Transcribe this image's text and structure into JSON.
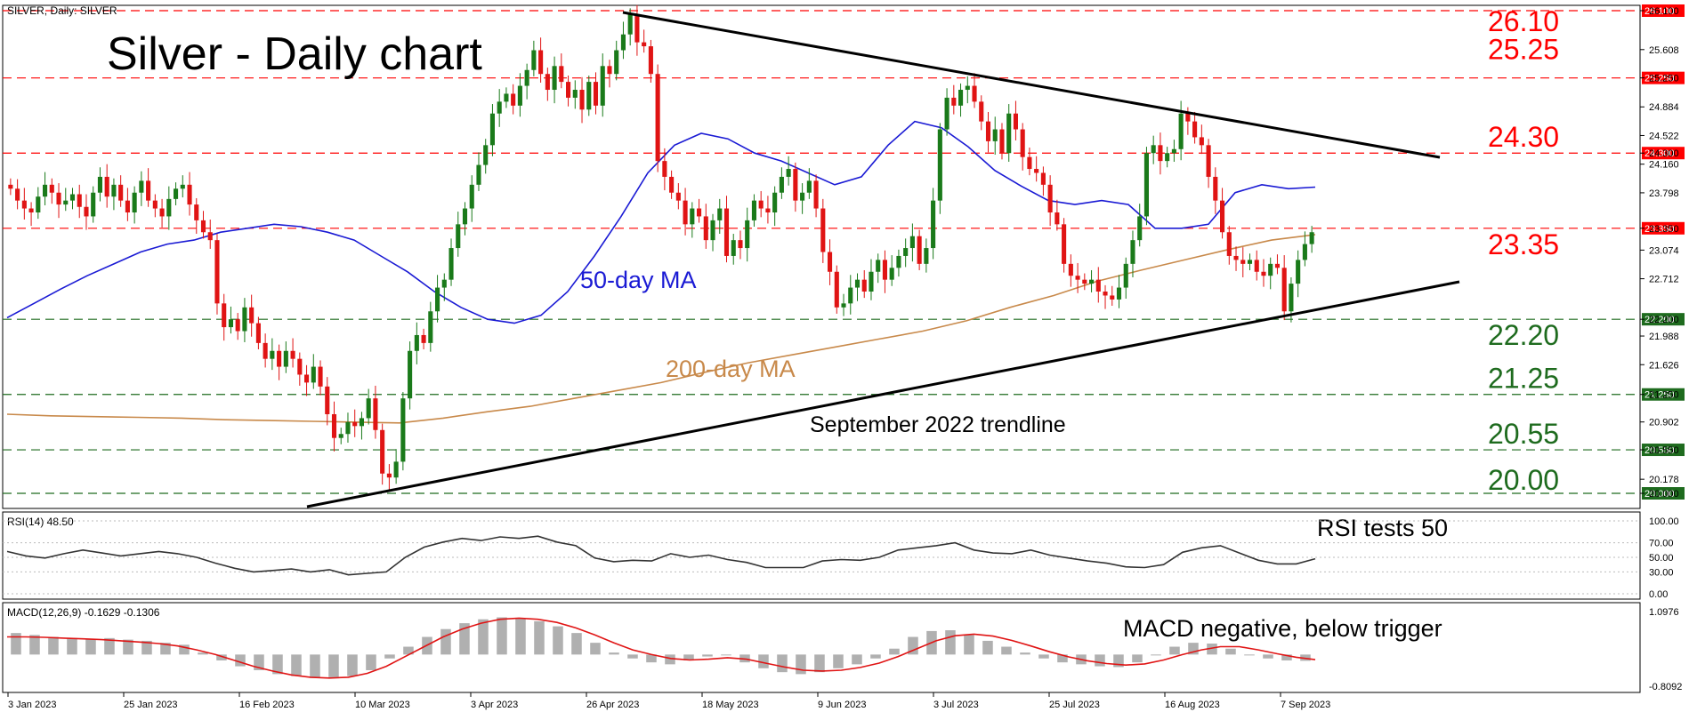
{
  "chart_data": {
    "type": "candlestick",
    "symbol_label": "SILVER, Daily:  SILVER",
    "title": "Silver - Daily chart",
    "price_axis": {
      "ticks": [
        "26.100",
        "25.608",
        "25.250",
        "24.884",
        "24.522",
        "24.300",
        "24.160",
        "23.798",
        "23.350",
        "23.074",
        "22.712",
        "22.200",
        "21.988",
        "21.626",
        "21.250",
        "20.902",
        "20.550",
        "20.178",
        "20.000"
      ],
      "ylim": [
        19.95,
        26.25
      ]
    },
    "x_labels": [
      "3 Jan 2023",
      "25 Jan 2023",
      "16 Feb 2023",
      "10 Mar 2023",
      "3 Apr 2023",
      "26 Apr 2023",
      "18 May 2023",
      "9 Jun 2023",
      "3 Jul 2023",
      "25 Jul 2023",
      "16 Aug 2023",
      "7 Sep 2023"
    ],
    "levels": [
      {
        "value": 26.1,
        "label": "26.10",
        "tag": "26.100",
        "color": "#ff0000"
      },
      {
        "value": 25.25,
        "label": "25.25",
        "tag": "25.250",
        "color": "#ff0000"
      },
      {
        "value": 24.3,
        "label": "24.30",
        "tag": "24.300",
        "color": "#ff0000"
      },
      {
        "value": 23.35,
        "label": "23.35",
        "tag": "23.350",
        "color": "#ff0000"
      },
      {
        "value": 22.2,
        "label": "22.20",
        "tag": "22.200",
        "color": "#1e6b1e"
      },
      {
        "value": 21.25,
        "label": "21.25",
        "tag": "21.250",
        "color": "#1e6b1e"
      },
      {
        "value": 20.55,
        "label": "20.55",
        "tag": "20.550",
        "color": "#1e6b1e"
      },
      {
        "value": 20.0,
        "label": "20.00",
        "tag": "20.000",
        "color": "#1e6b1e"
      }
    ],
    "annotations": {
      "ma50": "50-day MA",
      "ma200": "200-day MA",
      "trendline": "September 2022 trendline",
      "rsi_note": "RSI tests 50",
      "macd_note": "MACD negative, below trigger"
    },
    "close_series": [
      23.85,
      23.7,
      23.6,
      23.55,
      23.75,
      23.9,
      23.8,
      23.65,
      23.7,
      23.78,
      23.62,
      23.5,
      23.8,
      24.0,
      23.75,
      23.9,
      23.7,
      23.55,
      23.8,
      23.95,
      23.7,
      23.6,
      23.5,
      23.72,
      23.85,
      23.9,
      23.65,
      23.45,
      23.3,
      23.2,
      22.4,
      22.1,
      22.2,
      22.05,
      22.35,
      22.15,
      21.9,
      21.7,
      21.8,
      21.6,
      21.8,
      21.7,
      21.5,
      21.4,
      21.6,
      21.35,
      21.0,
      20.7,
      20.75,
      20.9,
      20.85,
      20.95,
      21.2,
      20.8,
      20.25,
      20.2,
      20.4,
      21.2,
      21.8,
      22.0,
      21.9,
      22.3,
      22.6,
      22.7,
      23.1,
      23.4,
      23.6,
      23.9,
      24.15,
      24.4,
      24.8,
      24.95,
      25.05,
      24.9,
      25.15,
      25.35,
      25.6,
      25.3,
      25.1,
      25.4,
      25.2,
      25.0,
      25.1,
      24.85,
      25.2,
      24.9,
      25.4,
      25.3,
      25.6,
      25.8,
      26.05,
      25.7,
      25.65,
      25.3,
      24.2,
      24.0,
      23.8,
      23.7,
      23.4,
      23.6,
      23.5,
      23.2,
      23.45,
      23.6,
      23.0,
      23.2,
      23.1,
      23.45,
      23.7,
      23.6,
      23.55,
      23.8,
      24.0,
      24.1,
      23.7,
      23.8,
      23.95,
      23.6,
      23.05,
      22.8,
      22.35,
      22.4,
      22.6,
      22.7,
      22.55,
      22.8,
      22.95,
      22.7,
      22.85,
      23.0,
      23.1,
      23.25,
      22.9,
      23.1,
      23.7,
      24.6,
      25.0,
      24.9,
      25.1,
      25.15,
      24.95,
      24.7,
      24.45,
      24.6,
      24.3,
      24.8,
      24.6,
      24.25,
      24.1,
      24.05,
      23.9,
      23.55,
      23.4,
      22.9,
      22.75,
      22.7,
      22.65,
      22.7,
      22.55,
      22.5,
      22.45,
      22.6,
      22.9,
      23.2,
      23.5,
      24.3,
      24.4,
      24.2,
      24.3,
      24.35,
      24.8,
      24.7,
      24.5,
      24.4,
      24.0,
      23.7,
      23.3,
      23.0,
      22.95,
      22.9,
      22.95,
      22.8,
      22.75,
      22.9,
      22.85,
      22.3,
      22.65,
      22.95,
      23.15,
      23.3
    ],
    "ma50": [
      22.22,
      22.4,
      22.58,
      22.75,
      22.9,
      23.05,
      23.15,
      23.2,
      23.3,
      23.35,
      23.4,
      23.37,
      23.3,
      23.2,
      23.0,
      22.8,
      22.55,
      22.35,
      22.2,
      22.15,
      22.25,
      22.55,
      23.0,
      23.5,
      24.05,
      24.4,
      24.55,
      24.48,
      24.3,
      24.2,
      24.05,
      23.9,
      24.0,
      24.4,
      24.7,
      24.62,
      24.38,
      24.08,
      23.88,
      23.7,
      23.65,
      23.7,
      23.65,
      23.35,
      23.35,
      23.4,
      23.8,
      23.9,
      23.85,
      23.87
    ],
    "ma200": [
      21.0,
      20.98,
      20.97,
      20.96,
      20.95,
      20.93,
      20.92,
      20.91,
      20.9,
      20.89,
      20.95,
      21.03,
      21.1,
      21.2,
      21.3,
      21.4,
      21.53,
      21.65,
      21.75,
      21.85,
      21.95,
      22.05,
      22.18,
      22.35,
      22.5,
      22.68,
      22.82,
      22.95,
      23.08,
      23.2,
      23.27
    ],
    "rsi": {
      "label": "RSI(14) 48.50",
      "ticks": [
        "100.00",
        "70.00",
        "50.00",
        "30.00",
        "0.00"
      ],
      "values": [
        58,
        52,
        49,
        55,
        60,
        56,
        52,
        55,
        58,
        55,
        50,
        42,
        35,
        30,
        32,
        34,
        30,
        33,
        26,
        28,
        30,
        50,
        64,
        71,
        76,
        73,
        78,
        76,
        79,
        71,
        66,
        49,
        44,
        46,
        45,
        55,
        50,
        53,
        47,
        43,
        36,
        36,
        36,
        45,
        47,
        46,
        50,
        60,
        63,
        66,
        70,
        60,
        56,
        55,
        60,
        53,
        49,
        45,
        42,
        37,
        36,
        40,
        57,
        63,
        66,
        56,
        46,
        41,
        41,
        48
      ]
    },
    "macd": {
      "label": "MACD(12,26,9) -0.1629 -0.1306",
      "ticks": [
        "1.0976",
        "-0.8092"
      ],
      "hist": [
        0.55,
        0.5,
        0.45,
        0.42,
        0.4,
        0.42,
        0.38,
        0.35,
        0.3,
        0.25,
        0.05,
        -0.15,
        -0.3,
        -0.4,
        -0.5,
        -0.55,
        -0.6,
        -0.58,
        -0.55,
        -0.4,
        -0.1,
        0.2,
        0.45,
        0.65,
        0.8,
        0.9,
        0.95,
        0.92,
        0.85,
        0.72,
        0.55,
        0.3,
        0.05,
        -0.1,
        -0.2,
        -0.25,
        -0.15,
        -0.05,
        0.0,
        -0.2,
        -0.35,
        -0.45,
        -0.5,
        -0.45,
        -0.35,
        -0.25,
        -0.1,
        0.15,
        0.45,
        0.6,
        0.62,
        0.5,
        0.35,
        0.2,
        0.05,
        -0.1,
        -0.2,
        -0.25,
        -0.3,
        -0.32,
        -0.2,
        0.0,
        0.2,
        0.3,
        0.28,
        0.15,
        0.0,
        -0.1,
        -0.15,
        -0.16
      ],
      "signal": [
        0.45,
        0.45,
        0.44,
        0.42,
        0.4,
        0.38,
        0.35,
        0.32,
        0.28,
        0.22,
        0.12,
        0.0,
        -0.15,
        -0.3,
        -0.42,
        -0.52,
        -0.58,
        -0.6,
        -0.58,
        -0.48,
        -0.3,
        -0.05,
        0.2,
        0.45,
        0.65,
        0.8,
        0.9,
        0.93,
        0.9,
        0.82,
        0.68,
        0.5,
        0.3,
        0.12,
        0.0,
        -0.1,
        -0.14,
        -0.12,
        -0.08,
        -0.12,
        -0.22,
        -0.32,
        -0.4,
        -0.42,
        -0.4,
        -0.33,
        -0.22,
        -0.05,
        0.15,
        0.35,
        0.48,
        0.52,
        0.47,
        0.36,
        0.22,
        0.07,
        -0.06,
        -0.16,
        -0.23,
        -0.27,
        -0.24,
        -0.14,
        0.0,
        0.12,
        0.2,
        0.2,
        0.12,
        0.02,
        -0.07,
        -0.13
      ]
    }
  }
}
